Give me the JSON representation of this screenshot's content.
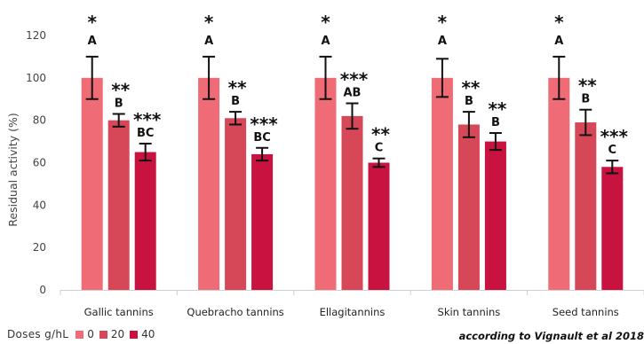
{
  "chart_data": {
    "type": "bar",
    "title": "",
    "xlabel": "",
    "ylabel": "Residual activity (%)",
    "ylim": [
      0,
      120
    ],
    "yticks": [
      0,
      20,
      40,
      60,
      80,
      100,
      120
    ],
    "grid": false,
    "legend_position": "bottom-left",
    "categories": [
      "Gallic tannins",
      "Quebracho tannins",
      "Ellagitannins",
      "Skin tannins",
      "Seed tannins"
    ],
    "series": [
      {
        "name": "0",
        "color": "#ef6b75",
        "values": [
          100,
          100,
          100,
          100,
          100
        ],
        "errors": [
          10,
          10,
          10,
          9,
          10
        ],
        "stars": [
          "*",
          "*",
          "*",
          "*",
          "*"
        ],
        "letters": [
          "A",
          "A",
          "A",
          "A",
          "A"
        ]
      },
      {
        "name": "20",
        "color": "#d64758",
        "values": [
          80,
          81,
          82,
          78,
          79
        ],
        "errors": [
          3,
          3,
          6,
          6,
          6
        ],
        "stars": [
          "**",
          "**",
          "***",
          "**",
          "**"
        ],
        "letters": [
          "B",
          "B",
          "AB",
          "B",
          "B"
        ]
      },
      {
        "name": "40",
        "color": "#c8123f",
        "values": [
          65,
          64,
          60,
          70,
          58
        ],
        "errors": [
          4,
          3,
          2,
          4,
          3
        ],
        "stars": [
          "***",
          "***",
          "**",
          "**",
          "***"
        ],
        "letters": [
          "BC",
          "BC",
          "C",
          "B",
          "C"
        ]
      }
    ]
  },
  "legend": {
    "title": "Doses g/hL",
    "items": [
      "0",
      "20",
      "40"
    ]
  },
  "source": "according to Vignault et al 2018"
}
